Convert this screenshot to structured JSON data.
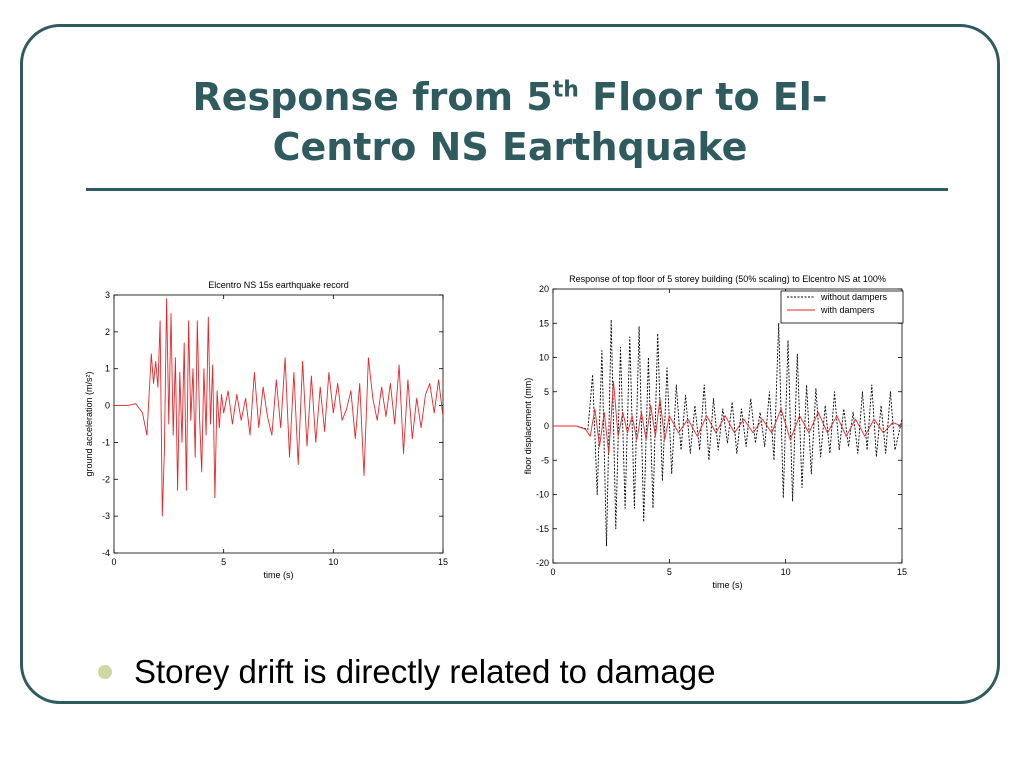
{
  "slide": {
    "title_part1": "Response from 5",
    "title_sup": "th",
    "title_part2": " Floor to El-",
    "title_line2": "Centro NS Earthquake",
    "bullet": "Storey drift is directly related to damage",
    "colors": {
      "theme": "#2f5b5e",
      "bullet": "#cfd7a6"
    }
  },
  "chart_data": [
    {
      "type": "line",
      "title": "Elcentro NS 15s earthquake record",
      "xlabel": "time (s)",
      "ylabel": "ground acceleration (m/s²)",
      "xlim": [
        0,
        15
      ],
      "ylim": [
        -4,
        3
      ],
      "xticks": [
        0,
        5,
        10,
        15
      ],
      "yticks": [
        -4,
        -3,
        -2,
        -1,
        0,
        1,
        2,
        3
      ],
      "grid": false,
      "series": [
        {
          "color": "#e8262a",
          "x": [
            0,
            0.6,
            1.0,
            1.3,
            1.5,
            1.6,
            1.7,
            1.8,
            1.9,
            2.0,
            2.1,
            2.2,
            2.3,
            2.4,
            2.5,
            2.6,
            2.7,
            2.8,
            2.9,
            3.0,
            3.1,
            3.2,
            3.3,
            3.4,
            3.5,
            3.6,
            3.7,
            3.8,
            3.9,
            4.0,
            4.1,
            4.2,
            4.3,
            4.4,
            4.5,
            4.6,
            4.7,
            4.8,
            4.9,
            5.0,
            5.2,
            5.4,
            5.6,
            5.8,
            6.0,
            6.2,
            6.4,
            6.6,
            6.8,
            7.0,
            7.2,
            7.4,
            7.6,
            7.8,
            8.0,
            8.2,
            8.4,
            8.6,
            8.8,
            9.0,
            9.2,
            9.4,
            9.6,
            9.8,
            10.0,
            10.2,
            10.4,
            10.6,
            10.8,
            11.0,
            11.2,
            11.4,
            11.6,
            11.8,
            12.0,
            12.2,
            12.4,
            12.6,
            12.8,
            13.0,
            13.2,
            13.4,
            13.6,
            13.8,
            14.0,
            14.2,
            14.4,
            14.6,
            14.8,
            15.0
          ],
          "y": [
            0,
            0,
            0.05,
            -0.2,
            -0.8,
            0.3,
            1.4,
            0.6,
            1.2,
            0.5,
            2.3,
            -3.0,
            -1.2,
            2.9,
            -0.5,
            2.5,
            -0.8,
            1.3,
            -2.3,
            0.9,
            -1.0,
            1.7,
            -2.3,
            2.3,
            -0.4,
            1.0,
            -1.4,
            2.3,
            -0.3,
            -1.8,
            1.0,
            -0.8,
            2.4,
            -0.5,
            1.1,
            -2.5,
            0.4,
            -0.6,
            0.3,
            -0.2,
            0.4,
            -0.5,
            0.3,
            -0.4,
            0.2,
            -0.8,
            0.9,
            -0.6,
            0.5,
            -0.3,
            -0.8,
            0.7,
            -0.6,
            1.3,
            -1.4,
            0.9,
            -1.6,
            1.2,
            -1.1,
            0.8,
            -1.0,
            0.5,
            -0.7,
            0.9,
            -0.2,
            0.6,
            -0.4,
            -0.1,
            0.4,
            -0.9,
            0.6,
            -1.9,
            1.3,
            0.2,
            -0.4,
            0.5,
            -0.3,
            0.6,
            -0.5,
            1.1,
            -1.3,
            0.7,
            -0.9,
            0.2,
            -0.6,
            0.3,
            0.6,
            -0.2,
            0.7,
            -0.3
          ]
        }
      ]
    },
    {
      "type": "line",
      "title": "Response of top floor of 5 storey building (50% scaling) to Elcentro NS at 100%",
      "xlabel": "time (s)",
      "ylabel": "floor displacement (mm)",
      "xlim": [
        0,
        15
      ],
      "ylim": [
        -20,
        20
      ],
      "xticks": [
        0,
        5,
        10,
        15
      ],
      "yticks": [
        -20,
        -15,
        -10,
        -5,
        0,
        5,
        10,
        15,
        20
      ],
      "grid": false,
      "legend_position": "top-right",
      "series": [
        {
          "name": "without dampers",
          "color": "#000000",
          "dash": true,
          "x": [
            0,
            1.0,
            1.5,
            1.7,
            1.9,
            2.1,
            2.3,
            2.5,
            2.7,
            2.9,
            3.1,
            3.3,
            3.5,
            3.7,
            3.9,
            4.1,
            4.3,
            4.5,
            4.7,
            4.9,
            5.1,
            5.3,
            5.5,
            5.7,
            5.9,
            6.1,
            6.3,
            6.5,
            6.7,
            6.9,
            7.1,
            7.3,
            7.5,
            7.7,
            7.9,
            8.1,
            8.3,
            8.5,
            8.7,
            8.9,
            9.1,
            9.3,
            9.5,
            9.7,
            9.9,
            10.1,
            10.3,
            10.5,
            10.7,
            10.9,
            11.1,
            11.3,
            11.5,
            11.7,
            11.9,
            12.1,
            12.3,
            12.5,
            12.7,
            12.9,
            13.1,
            13.3,
            13.5,
            13.7,
            13.9,
            14.1,
            14.3,
            14.5,
            14.7,
            15.0
          ],
          "y": [
            0,
            0,
            -0.5,
            7.5,
            -10,
            11,
            -17.5,
            15.5,
            -15,
            11.5,
            -12,
            13,
            -12,
            14.5,
            -14,
            10,
            -12,
            13.5,
            -8,
            8.5,
            -7,
            6,
            -3.5,
            4.5,
            -4,
            3,
            -3.5,
            6,
            -5,
            4,
            -3.5,
            2.5,
            -2.5,
            3.5,
            -4,
            2.5,
            -3,
            4,
            -2.5,
            2,
            -3,
            5,
            -5,
            15,
            -10.5,
            12.5,
            -11,
            10.5,
            -9,
            6,
            -7,
            5.5,
            -4.5,
            3,
            -4,
            5,
            -3.5,
            2.5,
            -3,
            2,
            -4,
            5,
            -3.5,
            6,
            -4.5,
            3,
            -4,
            5,
            -3.5,
            1
          ]
        },
        {
          "name": "with dampers",
          "color": "#e8262a",
          "dash": false,
          "x": [
            0,
            1.0,
            1.4,
            1.6,
            1.8,
            2.0,
            2.2,
            2.4,
            2.6,
            2.8,
            3.0,
            3.2,
            3.4,
            3.6,
            3.8,
            4.0,
            4.2,
            4.4,
            4.6,
            4.8,
            5.0,
            5.4,
            5.8,
            6.2,
            6.6,
            7.0,
            7.4,
            7.8,
            8.2,
            8.6,
            9.0,
            9.4,
            9.8,
            10.2,
            10.6,
            11.0,
            11.4,
            11.8,
            12.2,
            12.6,
            13.0,
            13.4,
            13.8,
            14.2,
            14.6,
            15.0
          ],
          "y": [
            0,
            0,
            -0.5,
            -1.5,
            2.5,
            -3,
            2,
            -4,
            6.5,
            -1.5,
            2,
            -1,
            1.5,
            -2,
            2,
            -2,
            3,
            -1.5,
            4,
            -2,
            1.5,
            -1,
            1,
            -1.5,
            1.5,
            -1,
            1.5,
            -1,
            1,
            -1,
            1,
            -1,
            2.5,
            -2,
            1.5,
            -1,
            2,
            -1,
            1.5,
            -1.5,
            1,
            -1.5,
            1,
            -1,
            0.5,
            0
          ]
        }
      ]
    }
  ]
}
